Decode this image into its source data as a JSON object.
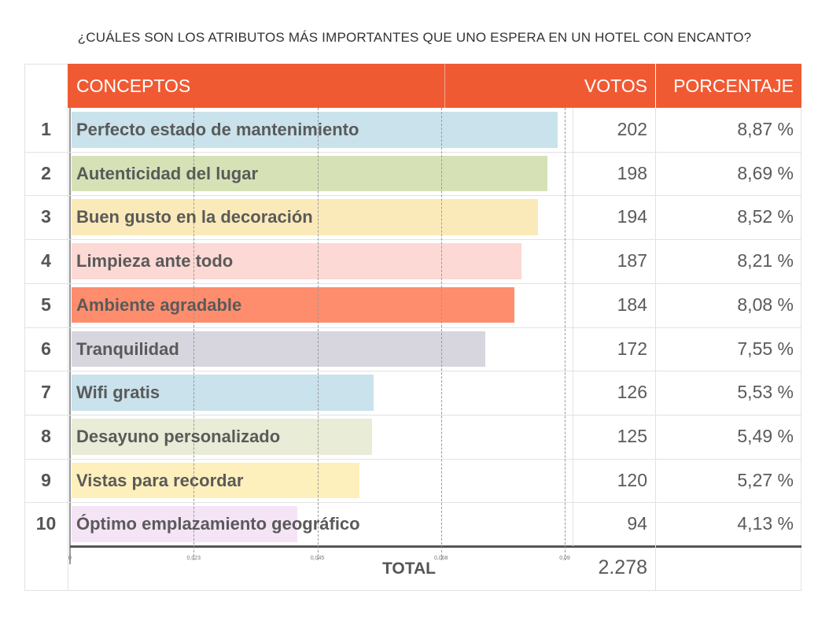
{
  "title": "¿CUÁLES SON LOS ATRIBUTOS MÁS IMPORTANTES QUE UNO ESPERA EN UN HOTEL CON ENCANTO?",
  "headers": {
    "concepts": "CONCEPTOS",
    "votes": "VOTOS",
    "percent": "PORCENTAJE"
  },
  "header_color": "#f05a33",
  "total": {
    "label": "TOTAL",
    "value": "2.278"
  },
  "chart_data": {
    "type": "bar",
    "orientation": "horizontal",
    "xlim": [
      0,
      0.09
    ],
    "ticks": [
      "0",
      "0,023",
      "0,045",
      "0,068",
      "0,09"
    ],
    "tick_values": [
      0,
      0.0225,
      0.045,
      0.0675,
      0.09
    ],
    "grid": true,
    "rows": [
      {
        "rank": "1",
        "concept": "Perfecto estado de mantenimiento",
        "votes": "202",
        "percent": "8,87 %",
        "value": 0.0887,
        "color": "#c9e2ec"
      },
      {
        "rank": "2",
        "concept": "Autenticidad del lugar",
        "votes": "198",
        "percent": "8,69 %",
        "value": 0.0869,
        "color": "#d6e2b6"
      },
      {
        "rank": "3",
        "concept": "Buen gusto en la decoración",
        "votes": "194",
        "percent": "8,52 %",
        "value": 0.0852,
        "color": "#fbeab9"
      },
      {
        "rank": "4",
        "concept": "Limpieza ante todo",
        "votes": "187",
        "percent": "8,21 %",
        "value": 0.0821,
        "color": "#fcd9d4"
      },
      {
        "rank": "5",
        "concept": "Ambiente agradable",
        "votes": "184",
        "percent": "8,08 %",
        "value": 0.0808,
        "color": "#fe8d6e"
      },
      {
        "rank": "6",
        "concept": "Tranquilidad",
        "votes": "172",
        "percent": "7,55 %",
        "value": 0.0755,
        "color": "#d7d5de"
      },
      {
        "rank": "7",
        "concept": "Wifi gratis",
        "votes": "126",
        "percent": "5,53 %",
        "value": 0.0553,
        "color": "#c9e2ec"
      },
      {
        "rank": "8",
        "concept": "Desayuno personalizado",
        "votes": "125",
        "percent": "5,49 %",
        "value": 0.0549,
        "color": "#e9ecd6"
      },
      {
        "rank": "9",
        "concept": "Vistas para recordar",
        "votes": "120",
        "percent": "5,27 %",
        "value": 0.0527,
        "color": "#fef0bc"
      },
      {
        "rank": "10",
        "concept": "Óptimo emplazamiento geográfico",
        "votes": "94",
        "percent": "4,13 %",
        "value": 0.0413,
        "color": "#f4e4f6"
      }
    ]
  }
}
